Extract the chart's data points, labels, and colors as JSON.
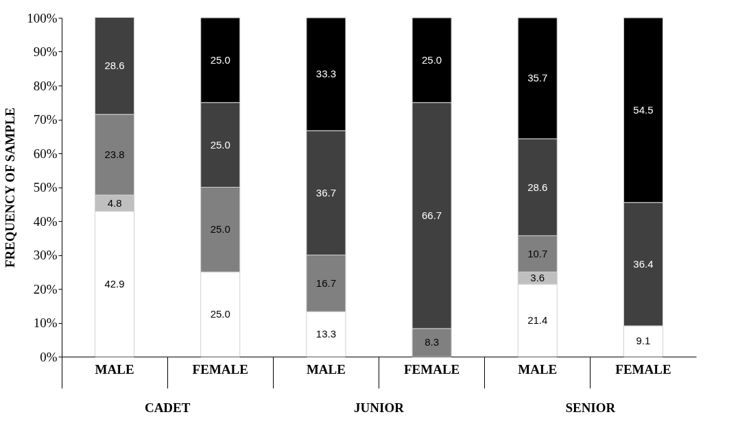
{
  "chart_data": {
    "type": "bar",
    "stacked": true,
    "ylabel": "FREQUENCY OF SAMPLE",
    "categories": [
      "MALE",
      "FEMALE",
      "MALE",
      "FEMALE",
      "MALE",
      "FEMALE"
    ],
    "annotations": [
      "CADET",
      "JUNIOR",
      "SENIOR"
    ],
    "ylim": [
      0,
      100
    ],
    "yticks": [
      {
        "value": 0,
        "label": "0%"
      },
      {
        "value": 10,
        "label": "10%"
      },
      {
        "value": 20,
        "label": "20%"
      },
      {
        "value": 30,
        "label": "30%"
      },
      {
        "value": 40,
        "label": "40%"
      },
      {
        "value": 50,
        "label": "50%"
      },
      {
        "value": 60,
        "label": "60%"
      },
      {
        "value": 70,
        "label": "70%"
      },
      {
        "value": 80,
        "label": "80%"
      },
      {
        "value": 90,
        "label": "90%"
      },
      {
        "value": 100,
        "label": "100%"
      }
    ],
    "grid": false,
    "series": [
      {
        "color": "#ffffff",
        "values": [
          42.9,
          25.0,
          13.3,
          null,
          21.4,
          9.1
        ],
        "value_labels": [
          "42.9",
          "25.0",
          "13.3",
          null,
          "21.4",
          "9.1"
        ]
      },
      {
        "color": "#bfbfbf",
        "values": [
          4.8,
          null,
          null,
          null,
          3.6,
          null
        ],
        "value_labels": [
          "4.8",
          null,
          null,
          null,
          "3.6",
          null
        ]
      },
      {
        "color": "#808080",
        "values": [
          23.8,
          25.0,
          16.7,
          8.3,
          10.7,
          null
        ],
        "value_labels": [
          "23.8",
          "25.0",
          "16.7",
          "8.3",
          "10.7",
          null
        ]
      },
      {
        "color": "#404040",
        "values": [
          28.6,
          25.0,
          36.7,
          66.7,
          28.6,
          36.4
        ],
        "value_labels": [
          "28.6",
          "25.0",
          "36.7",
          "66.7",
          "28.6",
          "36.4"
        ]
      },
      {
        "color": "#000000",
        "values": [
          null,
          25.0,
          33.3,
          25.0,
          35.7,
          54.5
        ],
        "value_labels": [
          null,
          "25.0",
          "33.3",
          "25.0",
          "35.7",
          "54.5"
        ]
      }
    ]
  }
}
